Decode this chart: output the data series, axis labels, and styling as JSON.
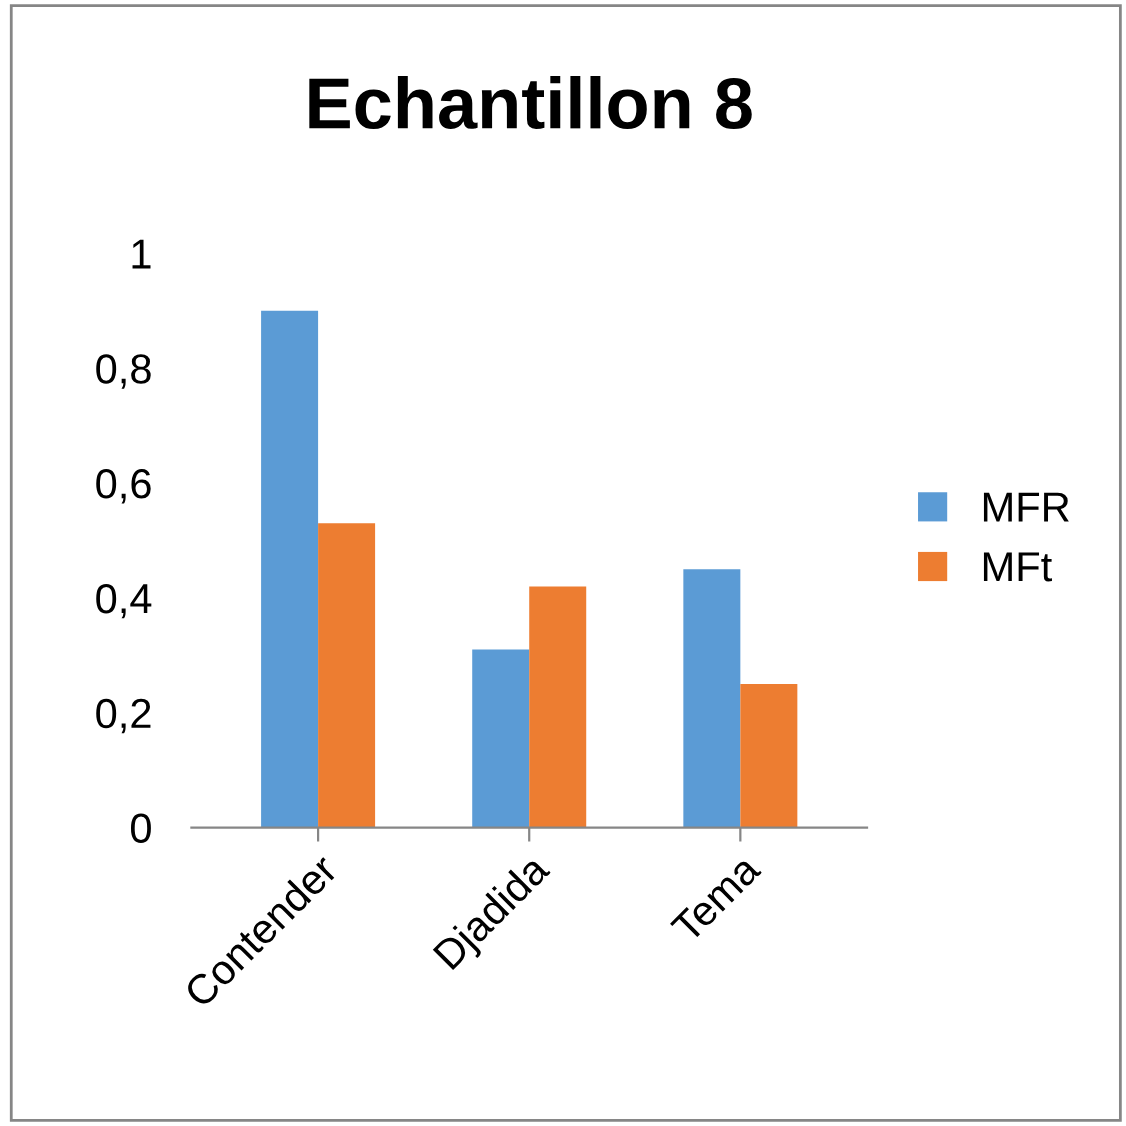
{
  "chart_data": {
    "type": "bar",
    "title": "Echantillon 8",
    "categories": [
      "Contender",
      "Djadida",
      "Tema"
    ],
    "series": [
      {
        "name": "MFR",
        "color": "#5b9bd5",
        "values": [
          0.9,
          0.31,
          0.45
        ]
      },
      {
        "name": "MFt",
        "color": "#ed7d31",
        "values": [
          0.53,
          0.42,
          0.25
        ]
      }
    ],
    "ylim": [
      0,
      1
    ],
    "yticks": [
      0,
      {
        "value": 0.2,
        "label": "0,2"
      },
      {
        "value": 0.4,
        "label": "0,4"
      },
      {
        "value": 0.6,
        "label": "0,6"
      },
      {
        "value": 0.8,
        "label": "0,8"
      },
      1
    ],
    "grid": false,
    "legend": "right"
  }
}
